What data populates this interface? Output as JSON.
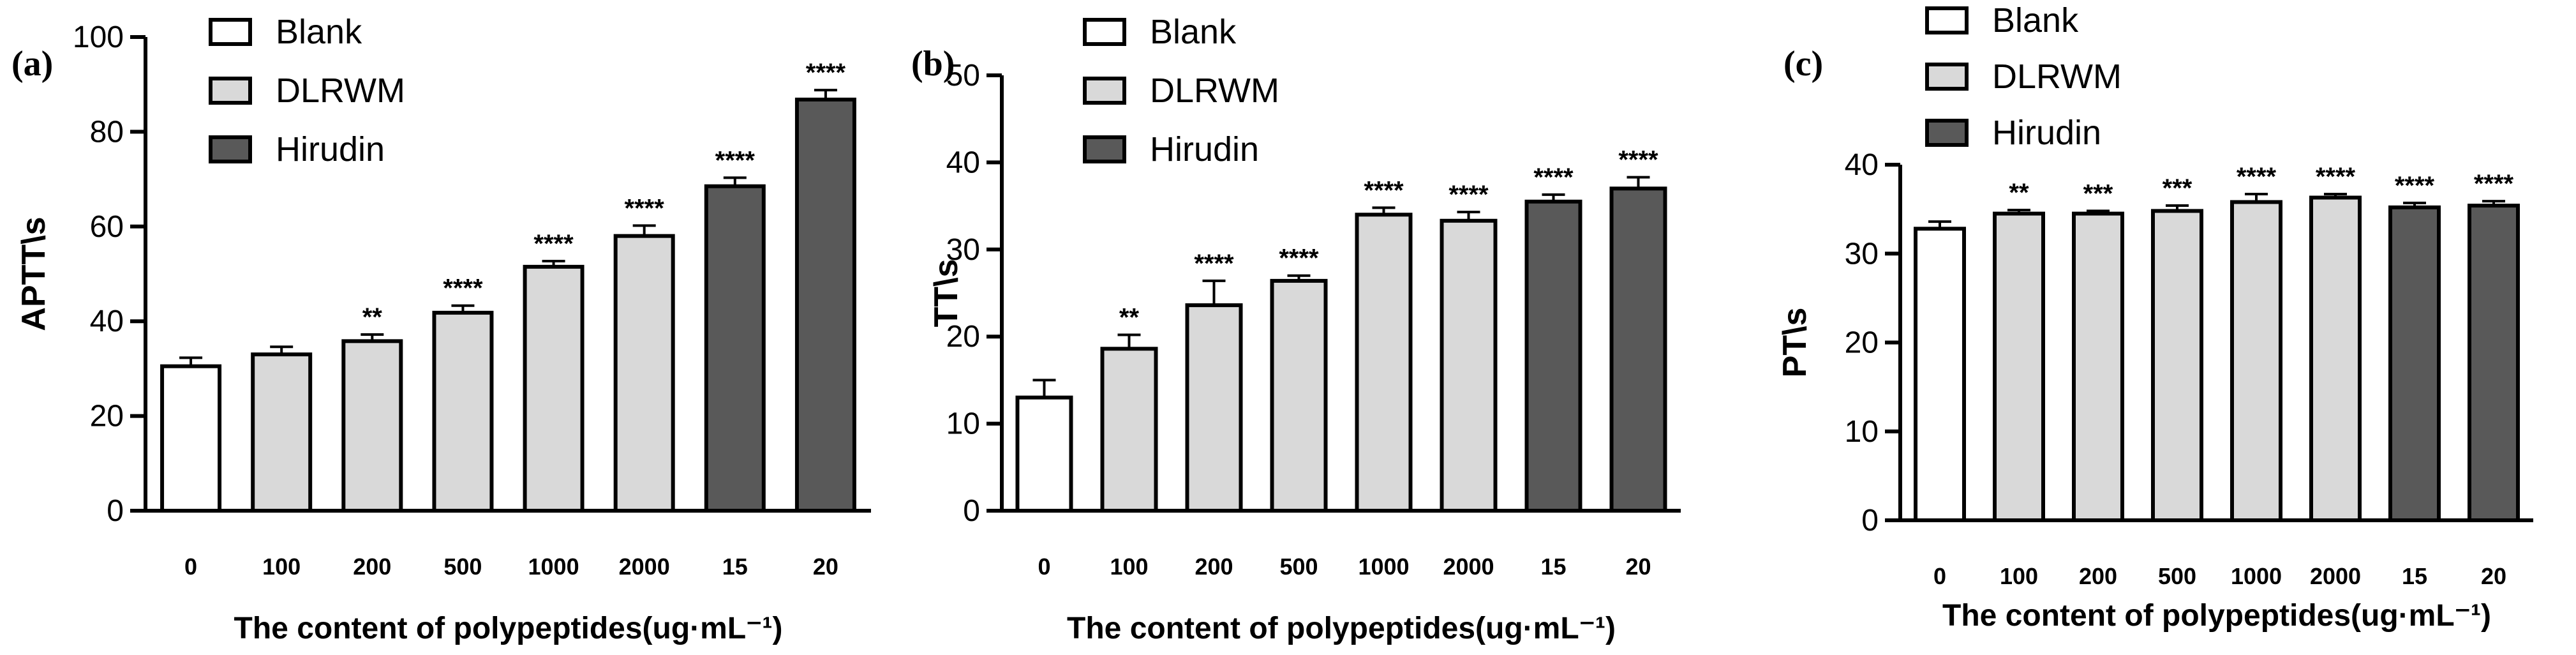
{
  "chart_data": [
    {
      "type": "bar",
      "panel_label": "(a)",
      "categories": [
        "0",
        "100",
        "200",
        "500",
        "1000",
        "2000",
        "15",
        "20"
      ],
      "groups": [
        "Blank",
        "DLRWM",
        "DLRWM",
        "DLRWM",
        "DLRWM",
        "DLRWM",
        "Hirudin",
        "Hirudin"
      ],
      "values": [
        30.5,
        33.0,
        35.8,
        41.8,
        51.5,
        58.0,
        68.5,
        86.8
      ],
      "errors": [
        1.8,
        1.6,
        1.4,
        1.5,
        1.2,
        2.2,
        1.8,
        2.0
      ],
      "significance": [
        "",
        "",
        "**",
        "****",
        "****",
        "****",
        "****",
        "****"
      ],
      "xlabel": "The content of polypeptides(ug·mL⁻¹)",
      "ylabel": "APTT\\s",
      "ylim": [
        0,
        100
      ],
      "yticks": [
        0,
        20,
        40,
        60,
        80,
        100
      ],
      "legend": [
        "Blank",
        "DLRWM",
        "Hirudin"
      ]
    },
    {
      "type": "bar",
      "panel_label": "(b)",
      "categories": [
        "0",
        "100",
        "200",
        "500",
        "1000",
        "2000",
        "15",
        "20"
      ],
      "groups": [
        "Blank",
        "DLRWM",
        "DLRWM",
        "DLRWM",
        "DLRWM",
        "DLRWM",
        "Hirudin",
        "Hirudin"
      ],
      "values": [
        13.0,
        18.6,
        23.6,
        26.4,
        34.0,
        33.3,
        35.5,
        37.0
      ],
      "errors": [
        2.0,
        1.6,
        2.8,
        0.6,
        0.8,
        1.0,
        0.8,
        1.3
      ],
      "significance": [
        "",
        "**",
        "****",
        "****",
        "****",
        "****",
        "****",
        "****"
      ],
      "xlabel": "The content of polypeptides(ug·mL⁻¹)",
      "ylabel": "TT\\s",
      "ylim": [
        0,
        50
      ],
      "yticks": [
        0,
        10,
        20,
        30,
        40,
        50
      ],
      "legend": [
        "Blank",
        "DLRWM",
        "Hirudin"
      ]
    },
    {
      "type": "bar",
      "panel_label": "(c)",
      "categories": [
        "0",
        "100",
        "200",
        "500",
        "1000",
        "2000",
        "15",
        "20"
      ],
      "groups": [
        "Blank",
        "DLRWM",
        "DLRWM",
        "DLRWM",
        "DLRWM",
        "DLRWM",
        "Hirudin",
        "Hirudin"
      ],
      "values": [
        32.8,
        34.5,
        34.5,
        34.8,
        35.8,
        36.3,
        35.2,
        35.4
      ],
      "errors": [
        0.8,
        0.4,
        0.3,
        0.6,
        0.9,
        0.4,
        0.5,
        0.5
      ],
      "significance": [
        "",
        "**",
        "***",
        "***",
        "****",
        "****",
        "****",
        "****"
      ],
      "xlabel": "The content of polypeptides(ug·mL⁻¹)",
      "ylabel": "PT\\s",
      "ylim": [
        0,
        40
      ],
      "yticks": [
        0,
        10,
        20,
        30,
        40
      ],
      "legend": [
        "Blank",
        "DLRWM",
        "Hirudin"
      ]
    }
  ],
  "colors": {
    "Blank": "#ffffff",
    "DLRWM": "#d9d9d9",
    "Hirudin": "#595959",
    "stroke": "#000000"
  }
}
